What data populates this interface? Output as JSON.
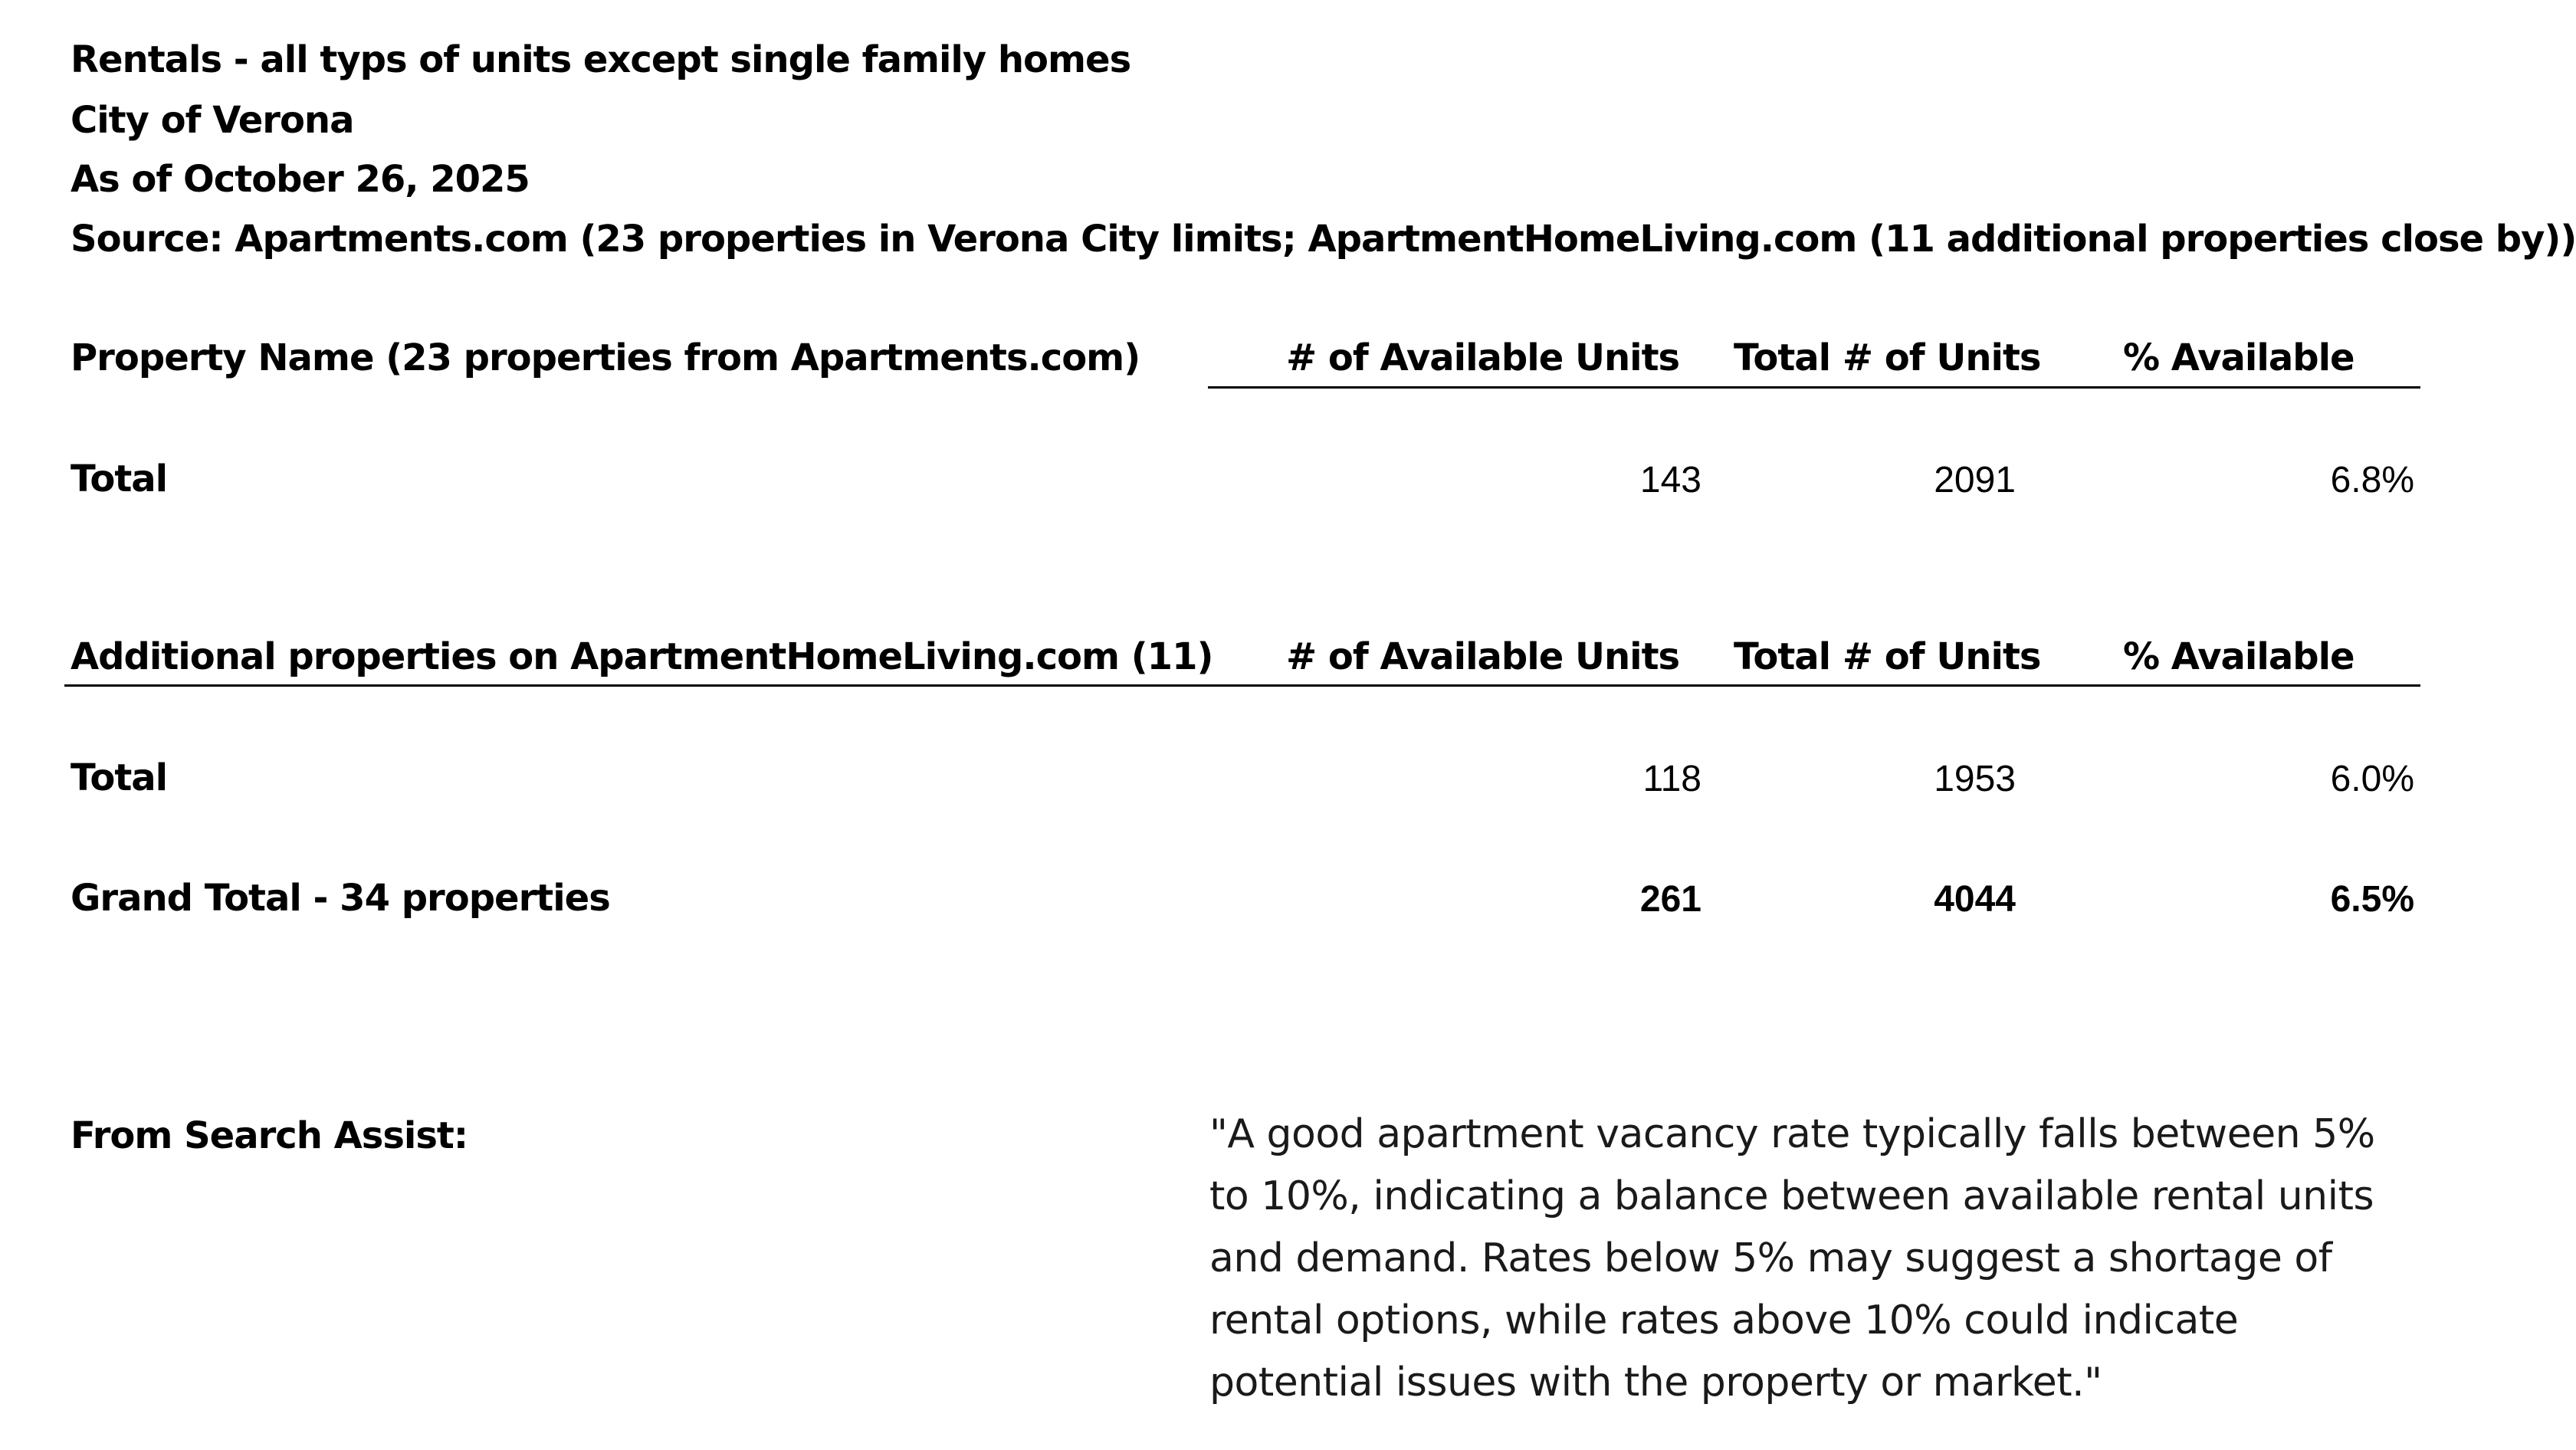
{
  "header": {
    "line1": "Rentals - all typs of units except single family homes",
    "line2": "City of Verona",
    "line3": "As of October 26, 2025",
    "line4": "Source: Apartments.com (23 properties in Verona City limits; ApartmentHomeLiving.com (11 additional properties close by))"
  },
  "section1": {
    "title": "Property Name (23 properties from Apartments.com)",
    "col_available": "# of Available Units",
    "col_total": "Total # of Units",
    "col_pct": "% Available",
    "total_label": "Total",
    "available": "143",
    "total_units": "2091",
    "pct": "6.8%"
  },
  "section2": {
    "title": "Additional properties on ApartmentHomeLiving.com (11)",
    "col_available": "# of Available Units",
    "col_total": "Total # of Units",
    "col_pct": "% Available",
    "total_label": "Total",
    "available": "118",
    "total_units": "1953",
    "pct": "6.0%"
  },
  "grand_total": {
    "label": "Grand Total - 34 properties",
    "available": "261",
    "total_units": "4044",
    "pct": "6.5%"
  },
  "search_assist": {
    "label": "From Search Assist:",
    "quote": "\"A good apartment vacancy rate typically falls between 5% to 10%, indicating a balance between available rental units and demand. Rates below 5% may suggest a shortage of rental options, while rates above 10% could indicate potential issues with the property or market.\""
  }
}
